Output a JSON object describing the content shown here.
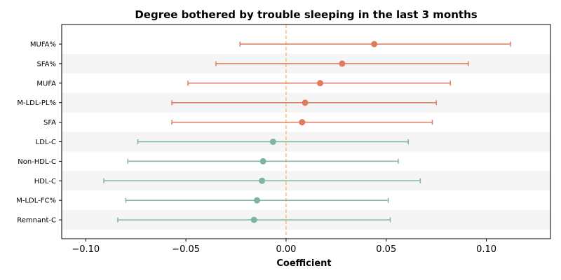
{
  "chart_data": {
    "type": "errorbar",
    "title": "Degree bothered by trouble sleeping in the last 3 months",
    "xlabel": "Coefficient",
    "ylabel": "",
    "xlim": [
      -0.112,
      0.132
    ],
    "xticks": [
      -0.1,
      -0.05,
      0.0,
      0.05,
      0.1
    ],
    "xtick_labels": [
      "−0.10",
      "−0.05",
      "0.00",
      "0.05",
      "0.10"
    ],
    "reference_line": {
      "x": 0.0,
      "style": "dashed"
    },
    "band_shading": "alternate rows",
    "grid": false,
    "rows": [
      {
        "label": "MUFA%",
        "estimate": 0.044,
        "ci_low": -0.023,
        "ci_high": 0.112,
        "group": "positive"
      },
      {
        "label": "SFA%",
        "estimate": 0.028,
        "ci_low": -0.035,
        "ci_high": 0.091,
        "group": "positive"
      },
      {
        "label": "MUFA",
        "estimate": 0.017,
        "ci_low": -0.049,
        "ci_high": 0.082,
        "group": "positive"
      },
      {
        "label": "M-LDL-PL%",
        "estimate": 0.0095,
        "ci_low": -0.057,
        "ci_high": 0.075,
        "group": "positive"
      },
      {
        "label": "SFA",
        "estimate": 0.008,
        "ci_low": -0.057,
        "ci_high": 0.073,
        "group": "positive"
      },
      {
        "label": "LDL-C",
        "estimate": -0.0065,
        "ci_low": -0.074,
        "ci_high": 0.061,
        "group": "negative"
      },
      {
        "label": "Non-HDL-C",
        "estimate": -0.0115,
        "ci_low": -0.079,
        "ci_high": 0.056,
        "group": "negative"
      },
      {
        "label": "HDL-C",
        "estimate": -0.012,
        "ci_low": -0.091,
        "ci_high": 0.067,
        "group": "negative"
      },
      {
        "label": "M-LDL-FC%",
        "estimate": -0.0145,
        "ci_low": -0.08,
        "ci_high": 0.051,
        "group": "negative"
      },
      {
        "label": "Remnant-C",
        "estimate": -0.016,
        "ci_low": -0.084,
        "ci_high": 0.052,
        "group": "negative"
      }
    ],
    "colors": {
      "positive": "#e07b5f",
      "negative": "#7fb59c",
      "reference_line": "#f0c36d",
      "band": "#f5f5f5",
      "axis": "#000000"
    }
  }
}
